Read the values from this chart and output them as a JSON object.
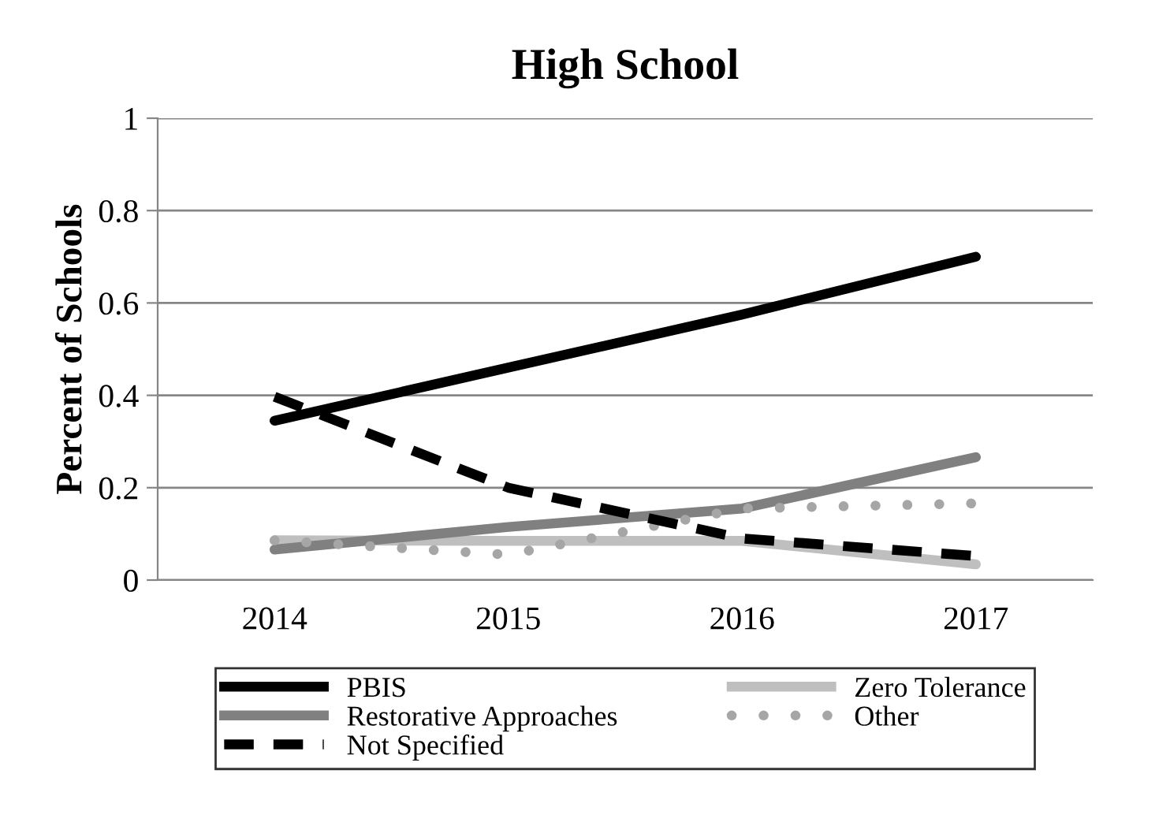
{
  "chart_data": {
    "type": "line",
    "title": "High School",
    "ylabel": "Percent of Schools",
    "categories": [
      "2014",
      "2015",
      "2016",
      "2017"
    ],
    "series": [
      {
        "name": "PBIS",
        "color": "#000000",
        "values": [
          0.345,
          0.46,
          0.575,
          0.7
        ],
        "line_style": "solid"
      },
      {
        "name": "Zero Tolerance",
        "color": "#bfbfbf",
        "values": [
          0.086,
          0.085,
          0.085,
          0.034
        ],
        "line_style": "solid"
      },
      {
        "name": "Restorative Approaches",
        "color": "#808080",
        "values": [
          0.066,
          0.115,
          0.155,
          0.266
        ],
        "line_style": "solid"
      },
      {
        "name": "Other",
        "color": "#a6a6a6",
        "values": [
          0.086,
          0.055,
          0.155,
          0.166
        ],
        "line_style": "dotted"
      },
      {
        "name": "Not Specified",
        "color": "#000000",
        "values": [
          0.397,
          0.2,
          0.09,
          0.052
        ],
        "line_style": "dashed"
      }
    ],
    "ylim": [
      0,
      1
    ],
    "yticks": [
      0,
      0.2,
      0.4,
      0.6,
      0.8,
      1
    ],
    "grid": "y",
    "legend": "bottom",
    "marker": "none"
  }
}
